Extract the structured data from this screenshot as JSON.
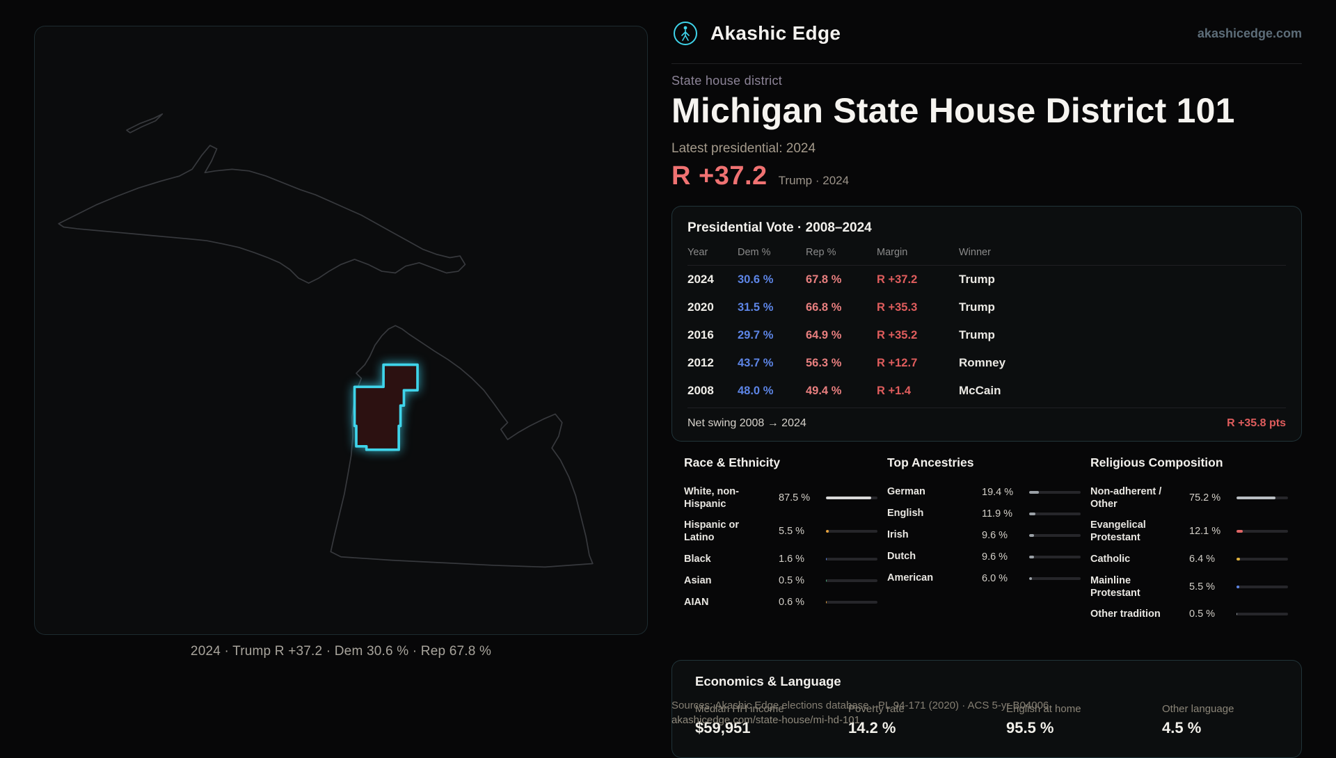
{
  "meta": {
    "accent_cyan": "#3fd4ea",
    "accent_red": "#e05d5d",
    "accent_blue": "#5d85e6",
    "background": "#070708"
  },
  "header": {
    "brand": "Akashic Edge",
    "site": "akashicedge.com"
  },
  "hero": {
    "kicker": "State house district",
    "title": "Michigan State House District 101",
    "subtitle": "Latest presidential: 2024",
    "margin_value": "R +37.2",
    "margin_context": "Trump · 2024"
  },
  "map": {
    "caption": "2024 · Trump R +37.2 · Dem 30.6 % · Rep 67.8 %",
    "highlight": "district-mi-hd-101"
  },
  "presidential": {
    "title": "Presidential Vote · 2008–2024",
    "columns": {
      "year": "Year",
      "dem": "Dem %",
      "rep": "Rep %",
      "margin": "Margin",
      "winner": "Winner"
    },
    "rows": [
      {
        "year": "2024",
        "dem": "30.6 %",
        "rep": "67.8 %",
        "margin": "R +37.2",
        "winner": "Trump"
      },
      {
        "year": "2020",
        "dem": "31.5 %",
        "rep": "66.8 %",
        "margin": "R +35.3",
        "winner": "Trump"
      },
      {
        "year": "2016",
        "dem": "29.7 %",
        "rep": "64.9 %",
        "margin": "R +35.2",
        "winner": "Trump"
      },
      {
        "year": "2012",
        "dem": "43.7 %",
        "rep": "56.3 %",
        "margin": "R +12.7",
        "winner": "Romney"
      },
      {
        "year": "2008",
        "dem": "48.0 %",
        "rep": "49.4 %",
        "margin": "R +1.4",
        "winner": "McCain"
      }
    ],
    "net_swing_label": "Net swing 2008 → 2024",
    "net_swing_value": "R +35.8 pts"
  },
  "demographics": [
    {
      "title": "Race & Ethnicity",
      "rows": [
        {
          "label": "White, non-Hispanic",
          "value": "87.5 %",
          "pct": 87.5,
          "color": "#d9d9d9"
        },
        {
          "label": "Hispanic or Latino",
          "value": "5.5 %",
          "pct": 5.5,
          "color": "#e8a33d"
        },
        {
          "label": "Black",
          "value": "1.6 %",
          "pct": 1.6,
          "color": "#5d85e6"
        },
        {
          "label": "Asian",
          "value": "0.5 %",
          "pct": 0.5,
          "color": "#4cae7e"
        },
        {
          "label": "AIAN",
          "value": "0.6 %",
          "pct": 0.6,
          "color": "#e8a33d"
        }
      ]
    },
    {
      "title": "Top Ancestries",
      "rows": [
        {
          "label": "German",
          "value": "19.4 %",
          "pct": 19.4,
          "color": "#9aa0a6"
        },
        {
          "label": "English",
          "value": "11.9 %",
          "pct": 11.9,
          "color": "#9aa0a6"
        },
        {
          "label": "Irish",
          "value": "9.6 %",
          "pct": 9.6,
          "color": "#9aa0a6"
        },
        {
          "label": "Dutch",
          "value": "9.6 %",
          "pct": 9.6,
          "color": "#9aa0a6"
        },
        {
          "label": "American",
          "value": "6.0 %",
          "pct": 6.0,
          "color": "#9aa0a6"
        }
      ]
    },
    {
      "title": "Religious Composition",
      "rows": [
        {
          "label": "Non-adherent / Other",
          "value": "75.2 %",
          "pct": 75.2,
          "color": "#b9bec3"
        },
        {
          "label": "Evangelical Protestant",
          "value": "12.1 %",
          "pct": 12.1,
          "color": "#e06666"
        },
        {
          "label": "Catholic",
          "value": "6.4 %",
          "pct": 6.4,
          "color": "#e0b23d"
        },
        {
          "label": "Mainline Protestant",
          "value": "5.5 %",
          "pct": 5.5,
          "color": "#5d85e6"
        },
        {
          "label": "Other tradition",
          "value": "0.5 %",
          "pct": 0.5,
          "color": "#9aa0a6"
        }
      ]
    }
  ],
  "economics": {
    "title": "Economics & Language",
    "stats": [
      {
        "label": "Median HH income",
        "value": "$59,951"
      },
      {
        "label": "Poverty rate",
        "value": "14.2 %"
      },
      {
        "label": "English at home",
        "value": "95.5 %"
      },
      {
        "label": "Other language",
        "value": "4.5 %"
      }
    ]
  },
  "footer": {
    "sources": "Sources: Akashic Edge elections database · PL 94-171 (2020) · ACS 5-yr B04006",
    "permalink": "akashicedge.com/state-house/mi-hd-101"
  }
}
